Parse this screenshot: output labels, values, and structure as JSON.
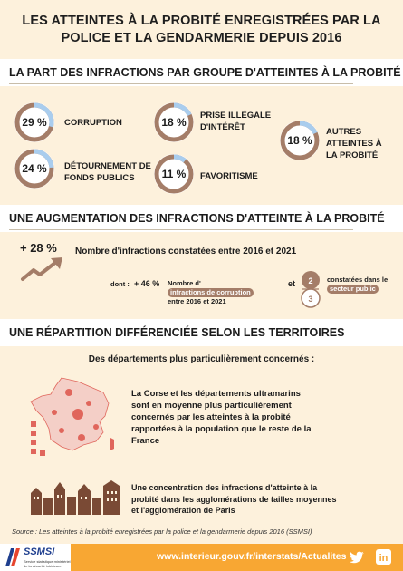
{
  "header": {
    "title_line1": "LES ATTEINTES À LA PROBITÉ ENREGISTRÉES PAR LA",
    "title_line2": "POLICE ET LA GENDARMERIE DEPUIS 2016"
  },
  "section1": {
    "title": "LA PART DES INFRACTIONS PAR GROUPE D'ATTEINTES À LA PROBITÉ",
    "items": [
      {
        "pct": "29 %",
        "value": 29,
        "label_line1": "CORRUPTION",
        "label_line2": "",
        "label_line3": ""
      },
      {
        "pct": "18 %",
        "value": 18,
        "label_line1": "PRISE ILLÉGALE",
        "label_line2": "D'INTÉRÊT",
        "label_line3": ""
      },
      {
        "pct": "18 %",
        "value": 18,
        "label_line1": "AUTRES",
        "label_line2": "ATTEINTES À",
        "label_line3": "LA PROBITÉ"
      },
      {
        "pct": "24 %",
        "value": 24,
        "label_line1": "DÉTOURNEMENT DE",
        "label_line2": "FONDS PUBLICS",
        "label_line3": ""
      },
      {
        "pct": "11 %",
        "value": 11,
        "label_line1": "FAVORITISME",
        "label_line2": "",
        "label_line3": ""
      }
    ]
  },
  "section2": {
    "title": "UNE AUGMENTATION DES INFRACTIONS D'ATTEINTE À LA PROBITÉ",
    "increase": "+ 28 %",
    "increase_text": "Nombre d'infractions constatées entre 2016 et 2021",
    "dont": "dont :",
    "sub_increase": "+ 46 %",
    "sub_text_prefix": "Nombre d'",
    "sub_pill": "infractions de corruption",
    "sub_text_suffix": "entre 2016 et 2021",
    "et": "et",
    "fraction_num": "2",
    "fraction_den": "3",
    "fraction_text": "constatées dans le",
    "fraction_pill": "secteur public"
  },
  "section3": {
    "title": "UNE RÉPARTITION DIFFÉRENCIÉE SELON LES TERRITOIRES",
    "subtitle": "Des départements plus particulièrement concernés :",
    "para1": [
      "La Corse et les départements ultramarins",
      "sont en moyenne plus particulièrement",
      "concernés par les atteintes à la probité",
      "rapportées à la population que le reste de la",
      "France"
    ],
    "para2": [
      "Une concentration des infractions d'atteinte à la",
      "probité dans les agglomérations de tailles moyennes",
      "et l'agglomération de Paris"
    ]
  },
  "source": "Source : Les atteintes à la probité enregistrées par la police et la gendarmerie depuis 2016 (SSMSI)",
  "footer": {
    "logo_text": "SSMSI",
    "logo_sub1": "Service statistique ministériel",
    "logo_sub2": "de la sécurité intérieure",
    "url": "www.interieur.gouv.fr/interstats/Actualites"
  },
  "colors": {
    "ring_main": "#a47d68",
    "ring_accent": "#a9cdee",
    "accent_brown": "#a47d68",
    "footer_orange": "#f8a733",
    "map_red": "#e0665c",
    "map_base": "#f4cfc7",
    "city_brown": "#7a4a35"
  }
}
